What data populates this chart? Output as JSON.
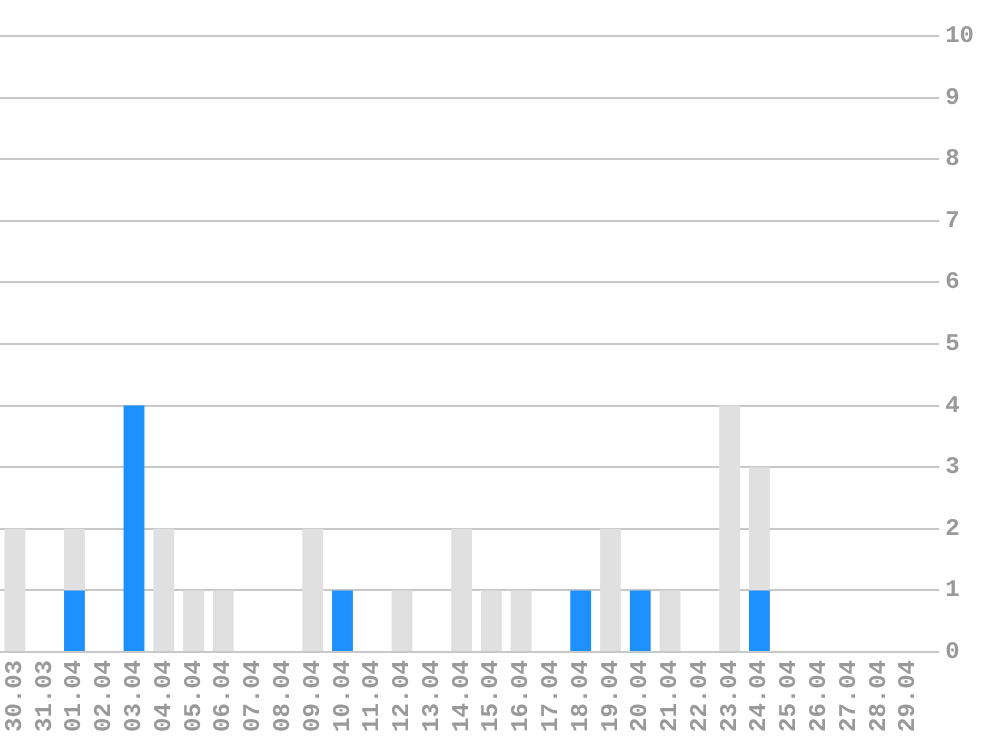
{
  "chart_data": {
    "type": "bar",
    "stacked": true,
    "categories": [
      "30.03",
      "31.03",
      "01.04",
      "02.04",
      "03.04",
      "04.04",
      "05.04",
      "06.04",
      "07.04",
      "08.04",
      "09.04",
      "10.04",
      "11.04",
      "12.04",
      "13.04",
      "14.04",
      "15.04",
      "16.04",
      "17.04",
      "18.04",
      "19.04",
      "20.04",
      "21.04",
      "22.04",
      "23.04",
      "24.04",
      "25.04",
      "26.04",
      "27.04",
      "28.04",
      "29.04"
    ],
    "series": [
      {
        "color": "#1e90ff",
        "values": [
          0,
          0,
          1,
          0,
          4,
          0,
          0,
          0,
          0,
          0,
          0,
          1,
          0,
          0,
          0,
          0,
          0,
          0,
          0,
          1,
          0,
          1,
          0,
          0,
          0,
          1,
          0,
          0,
          0,
          0,
          0
        ]
      },
      {
        "color": "#e0e0e0",
        "values": [
          2,
          0,
          1,
          0,
          0,
          2,
          1,
          1,
          0,
          0,
          2,
          0,
          0,
          1,
          0,
          2,
          1,
          1,
          0,
          0,
          2,
          0,
          1,
          0,
          4,
          2,
          0,
          0,
          0,
          0,
          0
        ]
      }
    ],
    "ylim": [
      0,
      10
    ],
    "yticks": [
      0,
      1,
      2,
      3,
      4,
      5,
      6,
      7,
      8,
      9,
      10
    ],
    "grid": "y",
    "legend": false
  }
}
